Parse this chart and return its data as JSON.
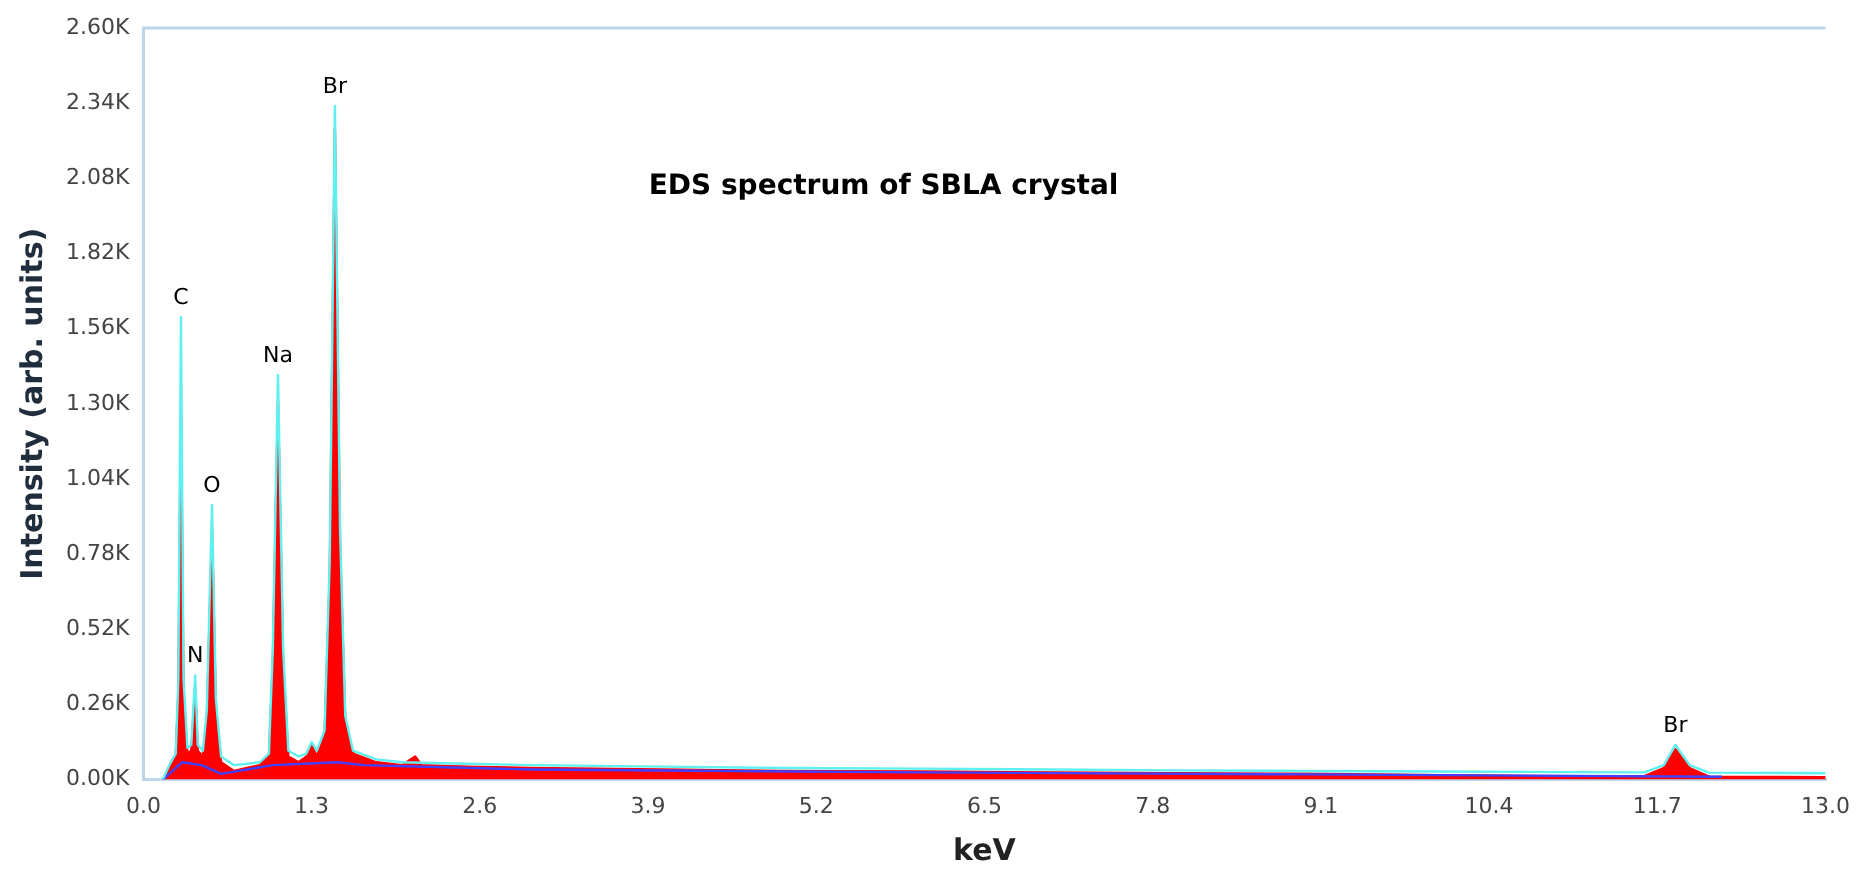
{
  "chart_data": {
    "type": "area",
    "title": "EDS spectrum of SBLA crystal",
    "xlabel": "keV",
    "ylabel": "Intensity (arb. units)",
    "xlim": [
      0,
      13
    ],
    "xticks": [
      {
        "value": 0,
        "label": "0.0"
      },
      1.3,
      2.6,
      3.9,
      5.2,
      6.5,
      7.8,
      9.1,
      10.4,
      11.7,
      {
        "value": 13,
        "label": "13.0"
      }
    ],
    "ylim": [
      0,
      2600
    ],
    "yticks": [
      {
        "value": 0,
        "label": "0.00K"
      },
      {
        "value": 260,
        "label": "0.26K"
      },
      {
        "value": 520,
        "label": "0.52K"
      },
      {
        "value": 780,
        "label": "0.78K"
      },
      {
        "value": 1040,
        "label": "1.04K"
      },
      {
        "value": 1300,
        "label": "1.30K"
      },
      {
        "value": 1560,
        "label": "1.56K"
      },
      {
        "value": 1820,
        "label": "1.82K"
      },
      {
        "value": 2080,
        "label": "2.08K"
      },
      {
        "value": 2340,
        "label": "2.34K"
      },
      {
        "value": 2600,
        "label": "2.60K"
      }
    ],
    "grid": false,
    "legend": false,
    "marker": "none",
    "series": [
      {
        "type": "line",
        "color": "#5ff0f0",
        "x": [
          0.15,
          0.2,
          0.25,
          0.27,
          0.29,
          0.31,
          0.34,
          0.37,
          0.4,
          0.42,
          0.46,
          0.49,
          0.53,
          0.56,
          0.6,
          0.7,
          0.8,
          0.9,
          0.97,
          1.0,
          1.04,
          1.08,
          1.12,
          1.2,
          1.26,
          1.3,
          1.34,
          1.4,
          1.44,
          1.48,
          1.52,
          1.56,
          1.62,
          1.8,
          2.0,
          2.5,
          3.0,
          4.0,
          5.0,
          6.0,
          7.0,
          8.0,
          9.0,
          10.0,
          11.0,
          11.6,
          11.75,
          11.84,
          11.95,
          12.1,
          13.0
        ],
        "values": [
          0,
          50,
          90,
          350,
          1600,
          350,
          110,
          120,
          360,
          120,
          100,
          240,
          950,
          280,
          80,
          50,
          55,
          60,
          90,
          450,
          1400,
          450,
          100,
          80,
          90,
          130,
          100,
          170,
          760,
          2330,
          860,
          220,
          100,
          70,
          60,
          55,
          50,
          45,
          40,
          38,
          35,
          32,
          30,
          28,
          26,
          25,
          50,
          120,
          50,
          24,
          22
        ]
      },
      {
        "color": "#ff0000",
        "x": [
          0.15,
          0.2,
          0.25,
          0.27,
          0.29,
          0.31,
          0.34,
          0.37,
          0.4,
          0.42,
          0.46,
          0.49,
          0.53,
          0.56,
          0.6,
          0.7,
          0.8,
          0.9,
          0.97,
          1.0,
          1.04,
          1.08,
          1.12,
          1.2,
          1.26,
          1.3,
          1.34,
          1.4,
          1.44,
          1.48,
          1.52,
          1.56,
          1.62,
          1.8,
          2.0,
          2.1,
          2.15,
          2.5,
          3.0,
          4.0,
          5.0,
          6.0,
          7.0,
          8.0,
          9.0,
          10.0,
          11.0,
          11.6,
          11.75,
          11.84,
          11.95,
          12.1,
          13.0
        ],
        "values": [
          0,
          40,
          80,
          300,
          1280,
          300,
          90,
          100,
          320,
          100,
          80,
          200,
          860,
          250,
          60,
          30,
          40,
          50,
          80,
          400,
          1310,
          400,
          80,
          60,
          80,
          120,
          80,
          150,
          700,
          2250,
          800,
          200,
          90,
          60,
          50,
          80,
          50,
          45,
          40,
          35,
          30,
          28,
          25,
          22,
          20,
          15,
          12,
          12,
          40,
          105,
          40,
          10,
          8
        ]
      },
      {
        "type": "line",
        "color": "#4040ff",
        "x": [
          0.15,
          0.3,
          0.45,
          0.6,
          1.0,
          1.5,
          1.7,
          3.0,
          6.0,
          9.0,
          12.2
        ],
        "values": [
          0,
          60,
          50,
          20,
          50,
          60,
          50,
          35,
          25,
          18,
          10
        ]
      }
    ],
    "annotations": [
      {
        "text": "C",
        "x": 0.29,
        "y": 1600
      },
      {
        "text": "N",
        "x": 0.4,
        "y": 360
      },
      {
        "text": "O",
        "x": 0.53,
        "y": 950
      },
      {
        "text": "Na",
        "x": 1.04,
        "y": 1400
      },
      {
        "text": "Br",
        "x": 1.48,
        "y": 2330
      },
      {
        "text": "Br",
        "x": 11.84,
        "y": 120
      }
    ]
  }
}
